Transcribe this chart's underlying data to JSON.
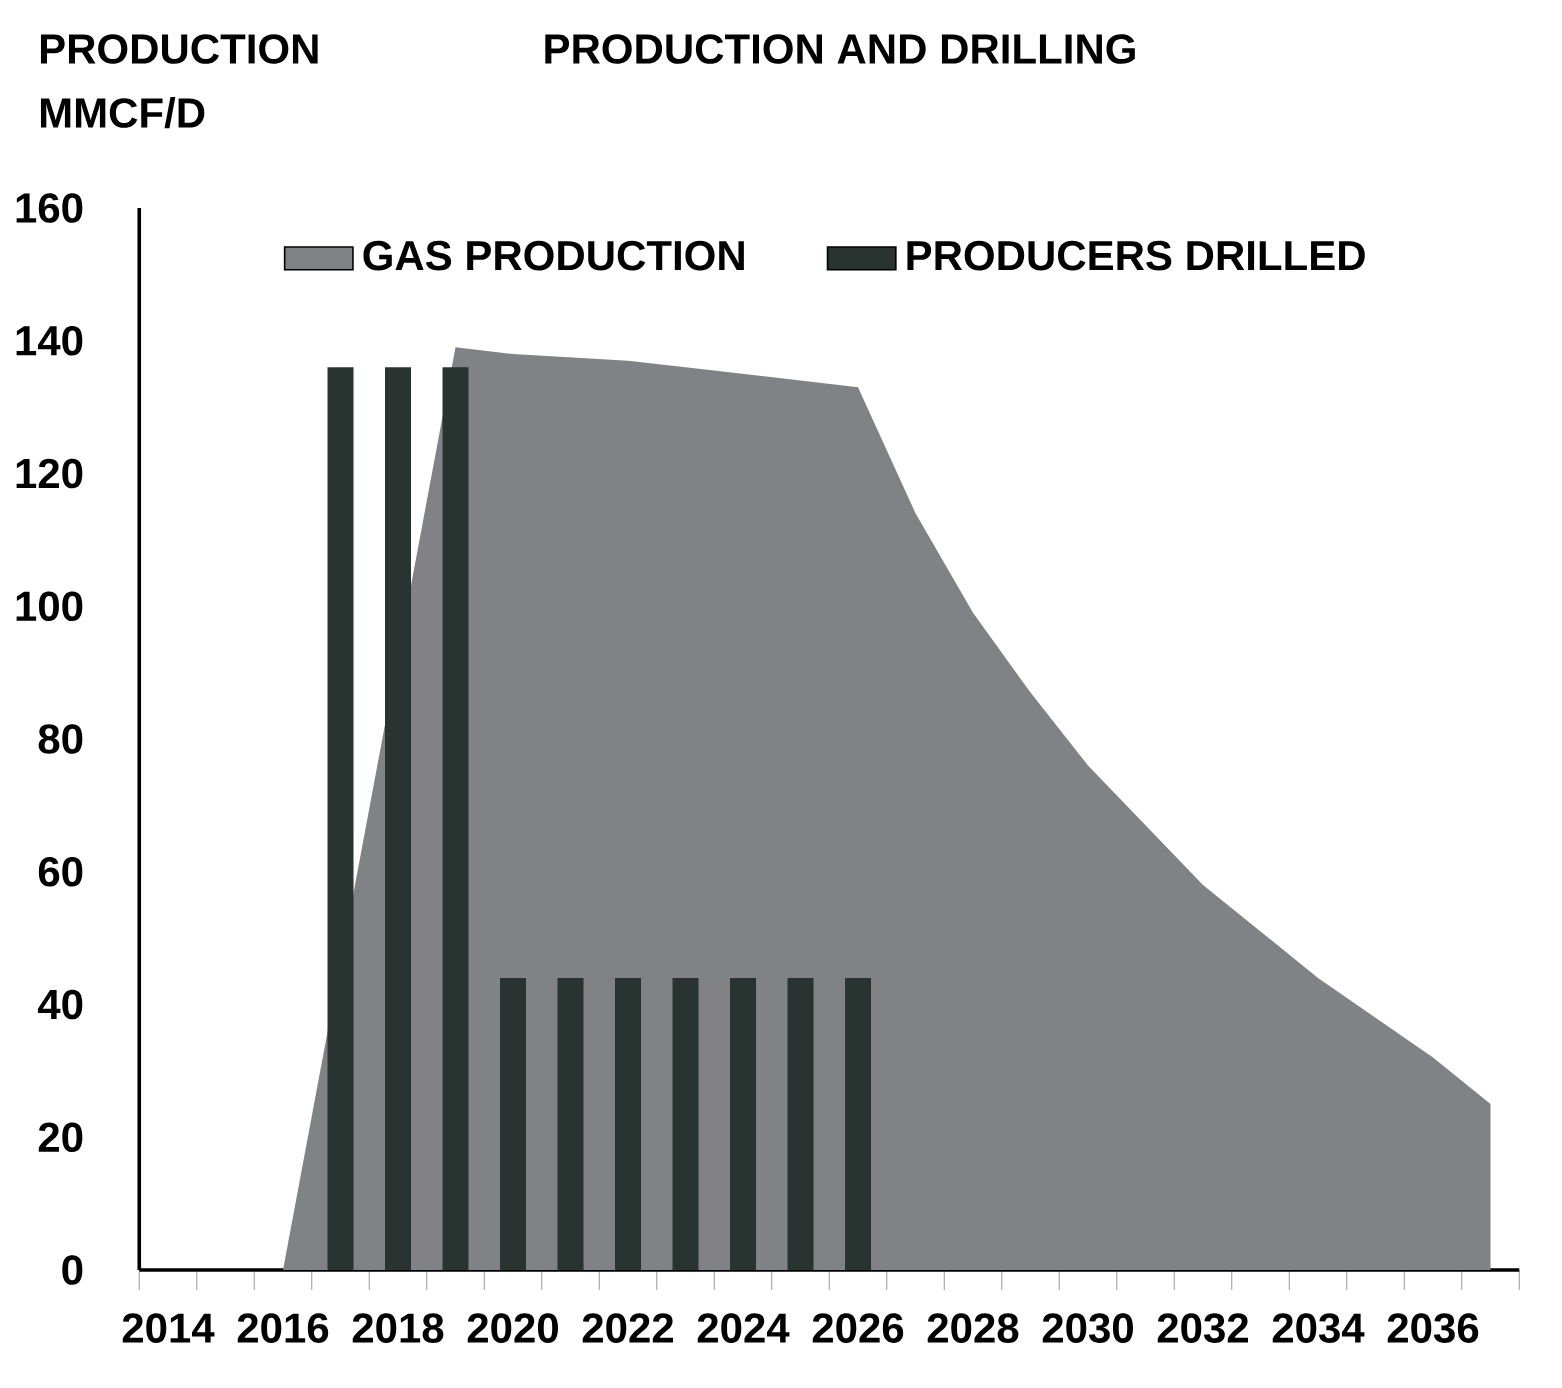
{
  "chart_data": {
    "type": "bar",
    "title": "PRODUCTION AND DRILLING",
    "ylabel": "PRODUCTION MMCF/D",
    "categories": [
      "2014",
      null,
      "2016",
      null,
      "2018",
      null,
      "2020",
      null,
      "2022",
      null,
      "2024",
      null,
      "2026",
      null,
      "2028",
      null,
      "2030",
      null,
      "2032",
      null,
      "2034",
      null,
      "2036",
      null
    ],
    "series": [
      {
        "name": "GAS PRODUCTION",
        "type": "area",
        "color": "#808285",
        "values": [
          0,
          0,
          0,
          null,
          null,
          139,
          138,
          137.5,
          137,
          136,
          135,
          134,
          133,
          114,
          99,
          87,
          76,
          67,
          58,
          51,
          44,
          38,
          32,
          25
        ]
      },
      {
        "name": "PRODUCERS DRILLED",
        "color": "#29332f",
        "values": [
          null,
          null,
          null,
          136,
          136,
          136,
          44,
          44,
          44,
          44,
          44,
          44,
          44,
          null,
          null,
          null,
          null,
          null,
          null,
          null,
          null,
          null,
          null,
          null
        ]
      }
    ],
    "ylim": [
      0,
      160
    ],
    "yticks": [
      0,
      20,
      40,
      60,
      80,
      100,
      120,
      140,
      160
    ],
    "legend": "top",
    "grid": false
  }
}
